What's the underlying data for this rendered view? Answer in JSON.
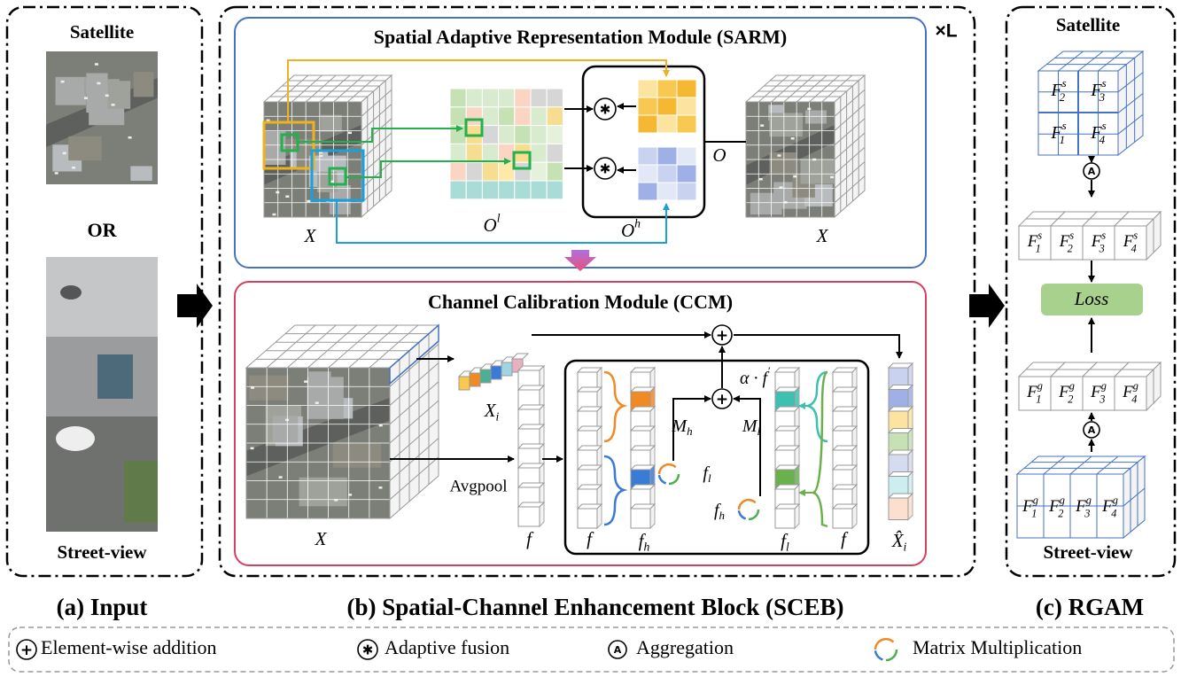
{
  "input": {
    "satellite": "Satellite",
    "or": "OR",
    "street": "Street-view",
    "caption": "(a) Input"
  },
  "sceb": {
    "repeat": "×L",
    "caption": "(b) Spatial-Channel Enhancement Block (SCEB)",
    "sarm": {
      "title": "Spatial Adaptive Representation Module (SARM)",
      "labels": [
        {
          "base": "X"
        },
        {
          "base": "O",
          "sup": "l"
        },
        {
          "base": "O",
          "sup": "h"
        },
        {
          "base": "O"
        },
        {
          "base": "X"
        }
      ]
    },
    "ccm": {
      "title": "Channel Calibration Module (CCM)",
      "avgpool": "Avgpool",
      "labels": [
        {
          "base": "X",
          "sub": "i"
        },
        {
          "base": "X"
        },
        {
          "base": "f"
        },
        {
          "base": "f"
        },
        {
          "base": "f",
          "sub": "h"
        },
        {
          "base": "f",
          "sub": "l"
        },
        {
          "base": "f"
        },
        {
          "base": "M",
          "sub": "h"
        },
        {
          "base": "M",
          "sub": "l"
        },
        {
          "base": "α · f",
          "sup": "′"
        },
        {
          "base": "f",
          "sub": "l"
        },
        {
          "base": "f",
          "sub": "h"
        },
        {
          "base": "X̂",
          "sub": "i"
        }
      ]
    }
  },
  "rgam": {
    "satellite": "Satellite",
    "street": "Street-view",
    "caption": "(c) RGAM",
    "loss": "Loss",
    "satellite_cells": [
      {
        "base": "F",
        "sup": "s",
        "sub": "2"
      },
      {
        "base": "F",
        "sup": "s",
        "sub": "3"
      },
      {
        "base": "F",
        "sup": "s",
        "sub": "1"
      },
      {
        "base": "F",
        "sup": "s",
        "sub": "4"
      }
    ],
    "satellite_row": [
      {
        "base": "F",
        "sup": "s",
        "sub": "1"
      },
      {
        "base": "F",
        "sup": "s",
        "sub": "2"
      },
      {
        "base": "F",
        "sup": "s",
        "sub": "3"
      },
      {
        "base": "F",
        "sup": "s",
        "sub": "4"
      }
    ],
    "street_row": [
      {
        "base": "F",
        "sup": "g",
        "sub": "1"
      },
      {
        "base": "F",
        "sup": "g",
        "sub": "2"
      },
      {
        "base": "F",
        "sup": "g",
        "sub": "3"
      },
      {
        "base": "F",
        "sup": "g",
        "sub": "4"
      }
    ],
    "street_cells": [
      {
        "base": "F",
        "sup": "g",
        "sub": "1"
      },
      {
        "base": "F",
        "sup": "g",
        "sub": "2"
      },
      {
        "base": "F",
        "sup": "g",
        "sub": "3"
      },
      {
        "base": "F",
        "sup": "g",
        "sub": "4"
      }
    ]
  },
  "legend": [
    {
      "symbol": "+",
      "label": "Element-wise addition"
    },
    {
      "symbol": "✱",
      "label": "Adaptive fusion"
    },
    {
      "symbol": "A",
      "label": "Aggregation"
    },
    {
      "label": "Matrix Multiplication"
    }
  ]
}
